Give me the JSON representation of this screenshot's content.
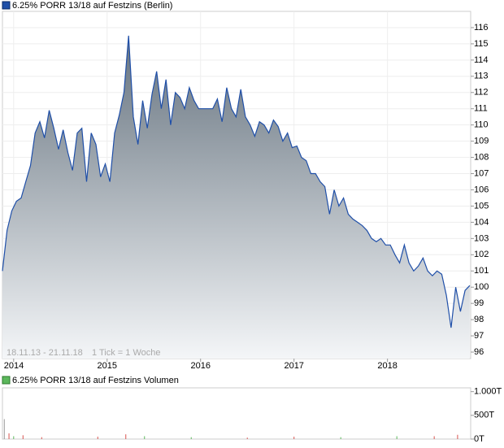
{
  "chart_data": [
    {
      "type": "area",
      "annotations": [
        "18.11.13 - 21.11.18",
        "1 Tick = 1 Woche"
      ],
      "xlim": [
        2013.88,
        2018.89
      ],
      "xticks": [
        2014,
        2015,
        2016,
        2017,
        2018
      ],
      "ylim": [
        95.6,
        117
      ],
      "yticks": [
        96,
        97,
        98,
        99,
        100,
        101,
        102,
        103,
        104,
        105,
        106,
        107,
        108,
        109,
        110,
        111,
        112,
        113,
        114,
        115,
        116
      ],
      "grid": true,
      "series": [
        {
          "name": "6.25% PORR 13/18 auf Festzins (Berlin)",
          "color": "#1f4fa8",
          "x": [
            2013.88,
            2013.93,
            2013.98,
            2014.03,
            2014.08,
            2014.13,
            2014.18,
            2014.23,
            2014.28,
            2014.33,
            2014.38,
            2014.43,
            2014.48,
            2014.53,
            2014.58,
            2014.63,
            2014.68,
            2014.73,
            2014.78,
            2014.83,
            2014.88,
            2014.93,
            2014.98,
            2015.03,
            2015.08,
            2015.13,
            2015.18,
            2015.23,
            2015.28,
            2015.33,
            2015.38,
            2015.43,
            2015.48,
            2015.53,
            2015.58,
            2015.63,
            2015.68,
            2015.73,
            2015.78,
            2015.83,
            2015.88,
            2015.93,
            2015.98,
            2016.03,
            2016.08,
            2016.13,
            2016.18,
            2016.23,
            2016.28,
            2016.33,
            2016.38,
            2016.43,
            2016.48,
            2016.53,
            2016.58,
            2016.63,
            2016.68,
            2016.73,
            2016.78,
            2016.83,
            2016.88,
            2016.93,
            2016.98,
            2017.03,
            2017.08,
            2017.13,
            2017.18,
            2017.23,
            2017.28,
            2017.33,
            2017.38,
            2017.43,
            2017.48,
            2017.53,
            2017.58,
            2017.63,
            2017.68,
            2017.73,
            2017.78,
            2017.83,
            2017.88,
            2017.93,
            2017.98,
            2018.03,
            2018.08,
            2018.13,
            2018.18,
            2018.23,
            2018.28,
            2018.33,
            2018.38,
            2018.43,
            2018.48,
            2018.53,
            2018.58,
            2018.63,
            2018.68,
            2018.73,
            2018.78,
            2018.83,
            2018.88
          ],
          "values": [
            101.0,
            103.5,
            104.7,
            105.3,
            105.5,
            106.5,
            107.5,
            109.5,
            110.2,
            109.2,
            110.9,
            109.8,
            108.5,
            109.7,
            108.3,
            107.2,
            109.5,
            109.8,
            106.5,
            109.5,
            108.8,
            106.8,
            107.6,
            106.5,
            109.5,
            110.6,
            112.0,
            115.5,
            110.5,
            108.8,
            111.5,
            109.8,
            111.9,
            113.3,
            111.0,
            112.8,
            110.0,
            112.0,
            111.7,
            111.0,
            112.3,
            111.5,
            111.0,
            111.0,
            111.0,
            111.0,
            111.6,
            110.2,
            112.3,
            111.0,
            110.5,
            112.2,
            110.5,
            110.0,
            109.3,
            110.2,
            110.0,
            109.5,
            110.3,
            109.9,
            109.0,
            109.5,
            108.6,
            108.7,
            108.0,
            107.8,
            107.0,
            107.0,
            106.5,
            106.2,
            104.5,
            106.0,
            105.0,
            105.5,
            104.5,
            104.2,
            104.0,
            103.8,
            103.5,
            103.0,
            102.8,
            103.0,
            102.6,
            102.6,
            102.0,
            101.5,
            102.6,
            101.5,
            101.0,
            101.3,
            101.8,
            101.0,
            100.7,
            101.0,
            100.8,
            99.5,
            97.5,
            100.0,
            98.5,
            99.8,
            100.1
          ]
        }
      ]
    },
    {
      "type": "bar",
      "xlim": [
        2013.88,
        2018.89
      ],
      "ylim": [
        0,
        1080
      ],
      "yticks": [
        {
          "value": 1000,
          "label": "1.000T"
        },
        {
          "value": 500,
          "label": "500T"
        },
        {
          "value": 0,
          "label": "0T"
        }
      ],
      "series": [
        {
          "name": "6.25% PORR 13/18 auf Festzins Volumen",
          "color": "#5cb85c",
          "x": [
            2013.9,
            2013.95,
            2014.0,
            2014.1,
            2014.3,
            2014.9,
            2015.2,
            2015.4,
            2015.9,
            2016.5,
            2017.0,
            2017.5,
            2018.1,
            2018.5,
            2018.75
          ],
          "values": [
            420,
            120,
            60,
            80,
            40,
            50,
            100,
            60,
            40,
            30,
            50,
            40,
            60,
            60,
            90
          ],
          "colors": [
            "#999999",
            "#d9534f",
            "#5cb85c",
            "#d9534f",
            "#d9534f",
            "#d9534f",
            "#d9534f",
            "#5cb85c",
            "#5cb85c",
            "#d9534f",
            "#d9534f",
            "#5cb85c",
            "#5cb85c",
            "#d9534f",
            "#d9534f"
          ]
        }
      ]
    }
  ]
}
